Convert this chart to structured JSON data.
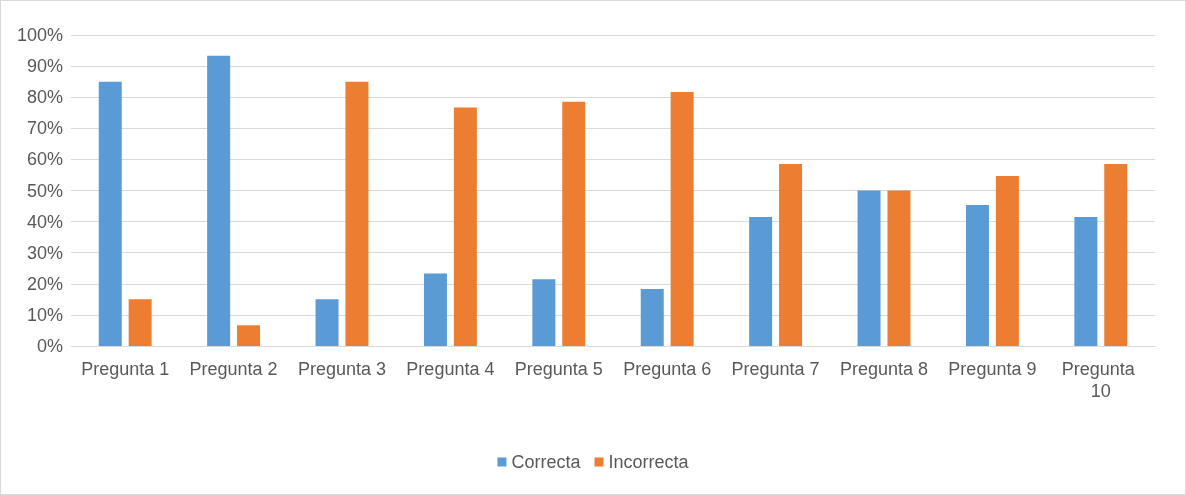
{
  "chart_data": {
    "type": "bar",
    "categories": [
      "Pregunta 1",
      "Pregunta 2",
      "Pregunta 3",
      "Pregunta 4",
      "Pregunta 5",
      "Pregunta 6",
      "Pregunta 7",
      "Pregunta 8",
      "Pregunta 9",
      "Pregunta 10"
    ],
    "series": [
      {
        "name": "Correcta",
        "color": "#5b9bd5",
        "values": [
          85,
          93.3,
          15,
          23.3,
          21.5,
          18.3,
          41.5,
          50,
          45.3,
          41.5
        ]
      },
      {
        "name": "Incorrecta",
        "color": "#ed7d31",
        "values": [
          15,
          6.7,
          85,
          76.7,
          78.5,
          81.7,
          58.5,
          50,
          54.7,
          58.5
        ]
      }
    ],
    "ylim": [
      0,
      100
    ],
    "yticks": [
      {
        "value": 0,
        "label": "0%"
      },
      {
        "value": 10,
        "label": "10%"
      },
      {
        "value": 20,
        "label": "20%"
      },
      {
        "value": 30,
        "label": "30%"
      },
      {
        "value": 40,
        "label": "40%"
      },
      {
        "value": 50,
        "label": "50%"
      },
      {
        "value": 60,
        "label": "60%"
      },
      {
        "value": 70,
        "label": "70%"
      },
      {
        "value": 80,
        "label": "80%"
      },
      {
        "value": 90,
        "label": "90%"
      },
      {
        "value": 100,
        "label": "100%"
      }
    ],
    "grid": "y",
    "legend": "bottom"
  }
}
